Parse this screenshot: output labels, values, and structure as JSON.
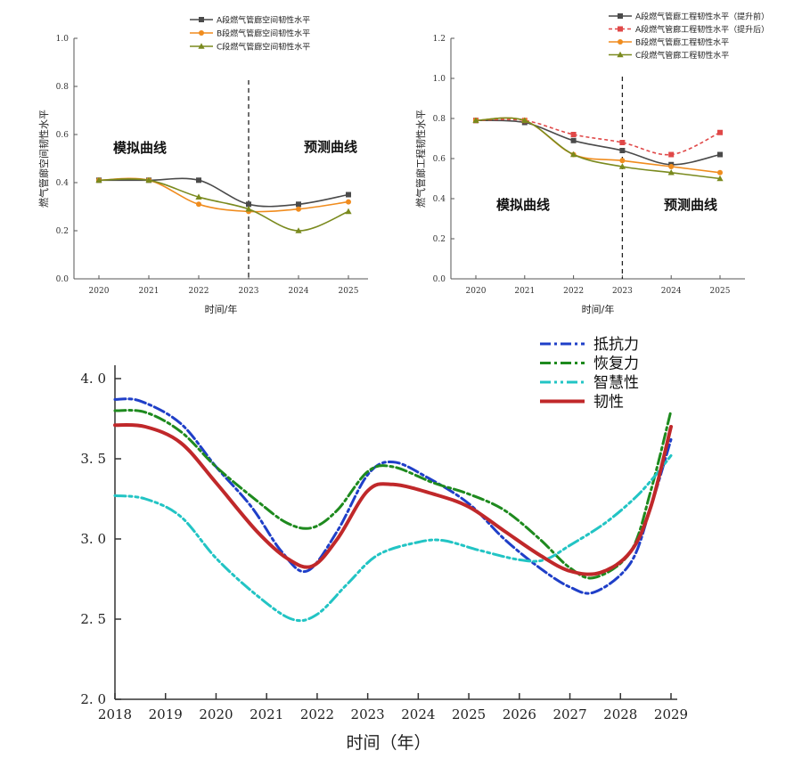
{
  "chart_data": [
    {
      "type": "line",
      "xlabel": "时间/年",
      "ylabel": "燃气管廊空间韧性水平",
      "x": [
        2020,
        2021,
        2022,
        2023,
        2024,
        2025
      ],
      "ylim": [
        0,
        1.0
      ],
      "yticks": [
        "0.0",
        "0.2",
        "0.4",
        "0.6",
        "0.8",
        "1.0"
      ],
      "divider_x": 2023,
      "annotations": [
        "模拟曲线",
        "预测曲线"
      ],
      "legend_position": "top-right",
      "series": [
        {
          "name": "A段燃气管廊空间韧性水平",
          "color": "#4a4a4a",
          "marker": "square",
          "dash": "",
          "values": [
            0.41,
            0.41,
            0.41,
            0.31,
            0.31,
            0.35
          ]
        },
        {
          "name": "B段燃气管廊空间韧性水平",
          "color": "#f08c1e",
          "marker": "circle",
          "dash": "",
          "values": [
            0.41,
            0.41,
            0.31,
            0.28,
            0.29,
            0.32
          ]
        },
        {
          "name": "C段燃气管廊空间韧性水平",
          "color": "#7a8a1e",
          "marker": "triangle",
          "dash": "",
          "values": [
            0.41,
            0.41,
            0.34,
            0.29,
            0.2,
            0.28
          ]
        }
      ]
    },
    {
      "type": "line",
      "xlabel": "时间/年",
      "ylabel": "燃气管廊工程韧性水平",
      "x": [
        2020,
        2021,
        2022,
        2023,
        2024,
        2025
      ],
      "ylim": [
        0,
        1.2
      ],
      "yticks": [
        "0.0",
        "0.2",
        "0.4",
        "0.6",
        "0.8",
        "1.0",
        "1.2"
      ],
      "divider_x": 2023,
      "annotations": [
        "模拟曲线",
        "预测曲线"
      ],
      "legend_position": "top-right",
      "series": [
        {
          "name": "A段燃气管廊工程韧性水平（提升前）",
          "color": "#4a4a4a",
          "marker": "square",
          "dash": "",
          "values": [
            0.79,
            0.78,
            0.69,
            0.64,
            0.57,
            0.62
          ]
        },
        {
          "name": "A段燃气管廊工程韧性水平（提升后）",
          "color": "#e04848",
          "marker": "square",
          "dash": "4,3",
          "values": [
            0.79,
            0.79,
            0.72,
            0.68,
            0.62,
            0.73
          ]
        },
        {
          "name": "B段燃气管廊工程韧性水平",
          "color": "#f08c1e",
          "marker": "circle",
          "dash": "",
          "values": [
            0.79,
            0.79,
            0.62,
            0.59,
            0.56,
            0.53
          ]
        },
        {
          "name": "C段燃气管廊工程韧性水平",
          "color": "#7a8a1e",
          "marker": "triangle",
          "dash": "",
          "values": [
            0.79,
            0.79,
            0.62,
            0.56,
            0.53,
            0.5
          ]
        }
      ]
    },
    {
      "type": "line",
      "xlabel": "时间（年）",
      "ylabel": "",
      "xlim": [
        2018,
        2029
      ],
      "xticks": [
        "2018",
        "2019",
        "2020",
        "2021",
        "2022",
        "2023",
        "2024",
        "2025",
        "2026",
        "2027",
        "2028",
        "2029"
      ],
      "ylim": [
        2.0,
        4.0
      ],
      "yticks": [
        "2.0",
        "2.5",
        "3.0",
        "3.5",
        "4.0"
      ],
      "legend_position": "top-right",
      "series": [
        {
          "name": "抵抗力",
          "color": "#1f3fc8",
          "dash": "12,4,3,4",
          "width": 3,
          "x": [
            2018,
            2018.5,
            2019.3,
            2020,
            2020.7,
            2021.3,
            2021.8,
            2022.4,
            2023.0,
            2023.5,
            2024.2,
            2025.0,
            2025.7,
            2026.4,
            2027.0,
            2027.5,
            2028.2,
            2028.6,
            2029
          ],
          "values": [
            3.87,
            3.86,
            3.72,
            3.45,
            3.2,
            2.92,
            2.8,
            3.05,
            3.4,
            3.48,
            3.38,
            3.22,
            3.0,
            2.82,
            2.7,
            2.67,
            2.85,
            3.2,
            3.62
          ]
        },
        {
          "name": "恢复力",
          "color": "#1e8a1e",
          "dash": "12,4,3,4",
          "width": 3,
          "x": [
            2018,
            2018.6,
            2019.3,
            2020,
            2020.8,
            2021.4,
            2021.9,
            2022.4,
            2023.0,
            2023.5,
            2024.3,
            2025.0,
            2025.7,
            2026.4,
            2027.0,
            2027.5,
            2028.2,
            2028.6,
            2029
          ],
          "values": [
            3.8,
            3.79,
            3.67,
            3.45,
            3.24,
            3.1,
            3.07,
            3.18,
            3.42,
            3.45,
            3.35,
            3.28,
            3.18,
            3.0,
            2.82,
            2.76,
            2.92,
            3.3,
            3.8
          ]
        },
        {
          "name": "智慧性",
          "color": "#22c4c4",
          "dash": "12,4,3,4,3,4",
          "width": 3,
          "x": [
            2018,
            2018.6,
            2019.3,
            2020,
            2020.8,
            2021.5,
            2022.0,
            2022.6,
            2023.2,
            2024.0,
            2024.5,
            2025.2,
            2026.0,
            2026.5,
            2027.0,
            2027.7,
            2028.3,
            2028.7,
            2029
          ],
          "values": [
            3.27,
            3.25,
            3.14,
            2.88,
            2.65,
            2.5,
            2.53,
            2.72,
            2.9,
            2.98,
            2.99,
            2.93,
            2.87,
            2.87,
            2.96,
            3.1,
            3.26,
            3.4,
            3.52
          ]
        },
        {
          "name": "韧性",
          "color": "#c0282a",
          "dash": "",
          "width": 4,
          "x": [
            2018,
            2018.6,
            2019.3,
            2020,
            2020.8,
            2021.4,
            2021.9,
            2022.4,
            2023.0,
            2023.5,
            2024.3,
            2025.0,
            2025.7,
            2026.4,
            2027.0,
            2027.6,
            2028.2,
            2028.6,
            2029
          ],
          "values": [
            3.71,
            3.7,
            3.6,
            3.35,
            3.05,
            2.88,
            2.83,
            3.0,
            3.3,
            3.34,
            3.28,
            3.2,
            3.05,
            2.9,
            2.8,
            2.79,
            2.92,
            3.2,
            3.7
          ]
        }
      ]
    }
  ]
}
